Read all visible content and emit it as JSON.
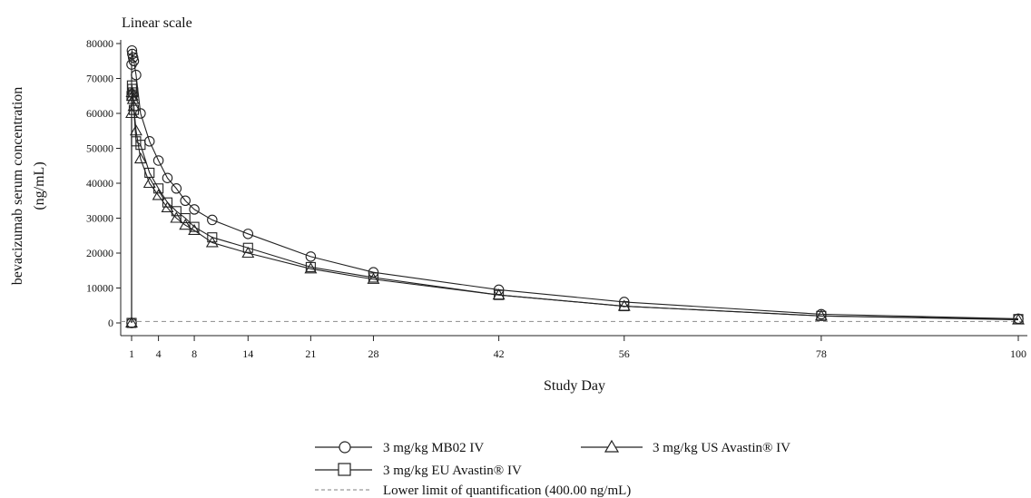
{
  "chart_data": {
    "type": "line",
    "subtitle": "Linear scale",
    "xlabel": "Study Day",
    "ylabel_line1": "bevacizumab serum concentration",
    "ylabel_line2": "(ng/mL)",
    "xlim": [
      0,
      100
    ],
    "ylim": [
      0,
      80000
    ],
    "xticks": [
      1,
      4,
      8,
      14,
      21,
      28,
      42,
      56,
      78,
      100
    ],
    "yticks": [
      0,
      10000,
      20000,
      30000,
      40000,
      50000,
      60000,
      70000,
      80000
    ],
    "grid": false,
    "legend_position": "bottom",
    "lloq": {
      "value": 400,
      "label": "Lower limit of quantification (400.00 ng/mL)",
      "style": "dashed",
      "color": "#999999"
    },
    "series": [
      {
        "name": "3 mg/kg MB02 IV",
        "marker": "circle",
        "color": "#222222",
        "x": [
          1,
          1,
          1.04,
          1.08,
          1.17,
          1.25,
          1.5,
          2,
          3,
          4,
          5,
          6,
          7,
          8,
          10,
          14,
          21,
          28,
          42,
          56,
          78,
          100
        ],
        "y": [
          0,
          74000,
          78000,
          77000,
          76000,
          75000,
          71000,
          60000,
          52000,
          46500,
          41500,
          38500,
          35000,
          32500,
          29500,
          25500,
          19000,
          14500,
          9500,
          6000,
          2500,
          1200
        ]
      },
      {
        "name": "3 mg/kg US Avastin® IV",
        "marker": "triangle",
        "color": "#222222",
        "x": [
          1,
          1,
          1.04,
          1.08,
          1.17,
          1.25,
          1.5,
          2,
          3,
          4,
          5,
          6,
          7,
          8,
          10,
          14,
          21,
          28,
          42,
          56,
          78,
          100
        ],
        "y": [
          0,
          60000,
          66000,
          65000,
          64000,
          62000,
          55000,
          47000,
          40000,
          36500,
          33000,
          30000,
          28000,
          26500,
          23000,
          20000,
          15500,
          12500,
          8000,
          4800,
          2000,
          900
        ]
      },
      {
        "name": "3 mg/kg EU Avastin® IV",
        "marker": "square",
        "color": "#222222",
        "x": [
          1,
          1,
          1.04,
          1.08,
          1.17,
          1.25,
          1.5,
          2,
          3,
          4,
          5,
          6,
          7,
          8,
          10,
          14,
          21,
          28,
          42,
          56,
          78,
          100
        ],
        "y": [
          0,
          65000,
          68000,
          67000,
          66000,
          61000,
          52000,
          51000,
          43000,
          38500,
          34500,
          32000,
          30000,
          27500,
          24500,
          21500,
          16000,
          13000,
          8000,
          4800,
          2000,
          1100
        ]
      }
    ]
  }
}
